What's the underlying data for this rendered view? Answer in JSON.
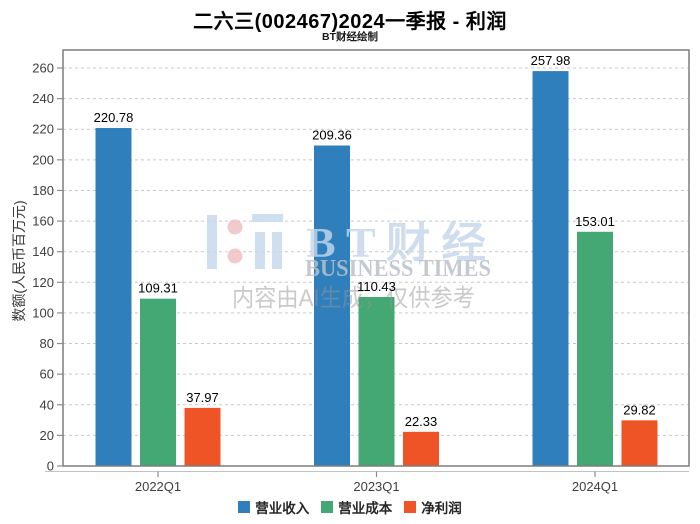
{
  "title": "二六三(002467)2024一季报 - 利润",
  "subtitle": "BT财经绘制",
  "watermark": {
    "brand_latin": "B T 财 经",
    "brand_sub": "BUSINESS TIMES",
    "disclaimer": "内容由AI生成，仅供参考",
    "logo_blue": "rgba(199,217,236,0.85)",
    "logo_pink": "rgba(240,193,196,0.85)",
    "text_blue": "rgba(196,214,234,0.82)",
    "text_gray": "rgba(186,192,202,0.85)",
    "disclaimer_color": "rgba(150,150,150,0.5)"
  },
  "colors": {
    "grid": "#c9c9c9",
    "frame": "#7d7d7d",
    "sub_axis": "#c2c2c2",
    "tick": "#8c8c8c",
    "tick_label": "#3f3f3f",
    "value_label": "#000000"
  },
  "chart_data": {
    "type": "bar",
    "title": "二六三(002467)2024一季报 - 利润",
    "subtitle": "BT财经绘制",
    "categories": [
      "2022Q1",
      "2023Q1",
      "2024Q1"
    ],
    "series": [
      {
        "name": "营业收入",
        "color": "#2f7fbc",
        "values": [
          220.78,
          209.36,
          257.98
        ]
      },
      {
        "name": "营业成本",
        "color": "#43a873",
        "values": [
          109.31,
          110.43,
          153.01
        ]
      },
      {
        "name": "净利润",
        "color": "#ef5426",
        "values": [
          37.97,
          22.33,
          29.82
        ]
      }
    ],
    "xlabel": "",
    "ylabel": "数额(人民币百万元)",
    "ylim": [
      0,
      272
    ],
    "ytick_step": 20,
    "ytick_max": 260,
    "grid": true,
    "grid_style": "dashed",
    "legend_position": "bottom"
  }
}
